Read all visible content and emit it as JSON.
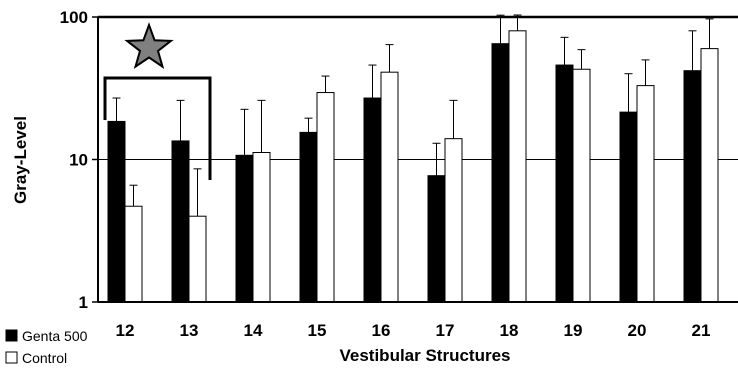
{
  "chart_data": {
    "type": "bar",
    "title": "",
    "xlabel": "Vestibular Structures",
    "ylabel": "Gray-Level",
    "y_scale": "log",
    "ylim": [
      1,
      100
    ],
    "y_ticks": [
      1,
      10,
      100
    ],
    "y_tick_labels": [
      "1",
      "10",
      "100"
    ],
    "grid": "horizontal at 10 and 100",
    "legend_position": "bottom-left",
    "categories": [
      "12",
      "13",
      "14",
      "15",
      "16",
      "17",
      "18",
      "19",
      "20",
      "21"
    ],
    "series": [
      {
        "name": "Genta 500",
        "color": "#000000",
        "values": [
          18.5,
          13.5,
          10.7,
          15.5,
          27,
          7.7,
          65,
          46,
          21.5,
          42
        ],
        "error_upper": [
          27,
          26,
          22.5,
          19.5,
          46,
          13,
          103,
          72,
          40,
          80
        ]
      },
      {
        "name": "Control",
        "color": "#ffffff",
        "values": [
          4.7,
          4.0,
          11.2,
          29.5,
          41,
          14,
          80,
          43,
          33,
          60
        ],
        "error_upper": [
          6.6,
          8.6,
          26,
          38.5,
          64,
          26,
          111,
          59,
          50,
          97
        ]
      }
    ],
    "annotations": [
      {
        "type": "significance-bracket",
        "spans": [
          "12",
          "13"
        ],
        "marker": "star",
        "marker_color": "#808080"
      }
    ]
  }
}
